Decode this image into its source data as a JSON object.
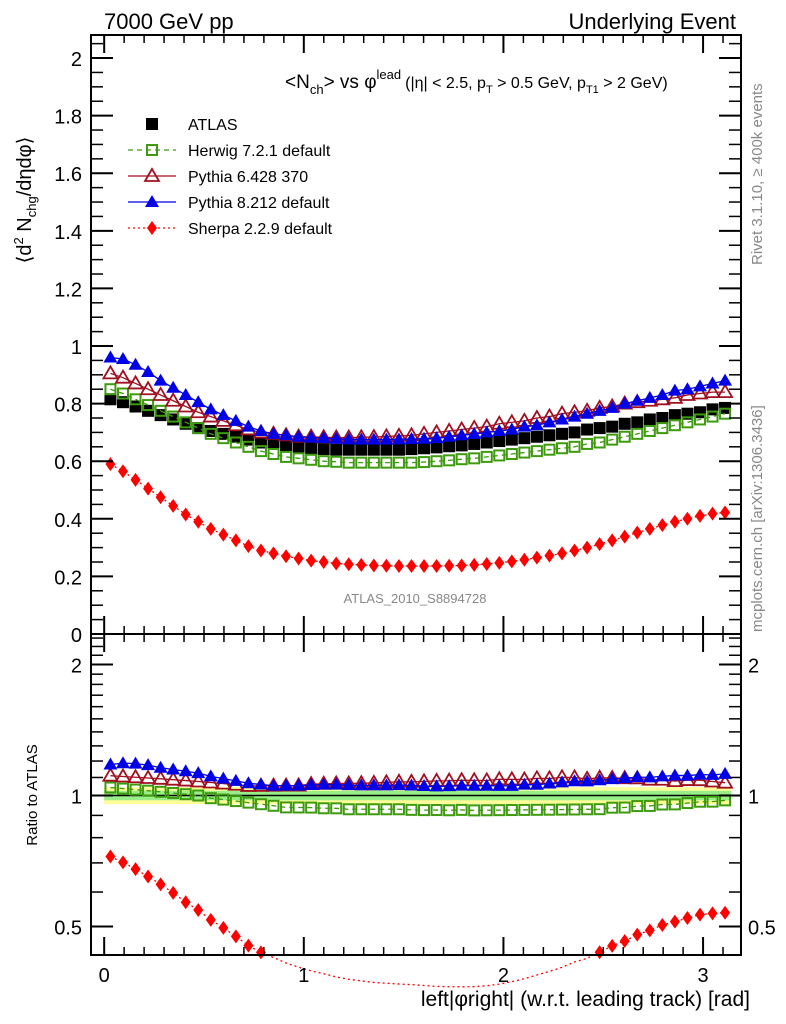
{
  "chart_data": {
    "type": "scatter",
    "header_left": "7000 GeV pp",
    "header_right": "Underlying Event",
    "title_main": "<N",
    "title_sub_ch": "ch",
    "title_vs": "> vs φ",
    "title_sup": "lead",
    "title_cuts": "(|η| < 2.5, p",
    "title_pt_sub": "T",
    "title_cuts2": " > 0.5 GeV, p",
    "title_pt1_sub": "T1",
    "title_cuts3": " > 2 GeV)",
    "ylabel": "⟨d² Nₑₕ₉/dηdφ⟩",
    "ylabel_parts": {
      "pre": "⟨d",
      "sup": "2",
      "mid": " N",
      "sub": "chg",
      "post": "/dηdφ⟩"
    },
    "xlabel": "left|φright| (w.r.t. leading track) [rad]",
    "ratio_ylabel": "Ratio to ATLAS",
    "analysis_id": "ATLAS_2010_S8894728",
    "side_text_top": "Rivet 3.1.10, ≥ 400k events",
    "side_text_bottom": "mcplots.cern.ch [arXiv:1306.3436]",
    "xlim": [
      -0.066,
      3.19
    ],
    "ylim": [
      0,
      2.08
    ],
    "ratio_ylim": [
      0.43,
      2.35
    ],
    "ratio_scale": "log",
    "x_ticks": [
      "0",
      "1",
      "2",
      "3"
    ],
    "y_ticks": [
      "0",
      "0.2",
      "0.4",
      "0.6",
      "0.8",
      "1",
      "1.2",
      "1.4",
      "1.6",
      "1.8",
      "2"
    ],
    "ratio_ticks": [
      "0.5",
      "1",
      "2"
    ],
    "legend_position": "top-left",
    "n_bins": 50,
    "x_min": 0,
    "x_max": 3.14159,
    "series": [
      {
        "name": "ATLAS",
        "color": "#000000",
        "marker": "square-filled",
        "line": "none",
        "values": [
          0.815,
          0.805,
          0.79,
          0.775,
          0.76,
          0.745,
          0.73,
          0.715,
          0.705,
          0.695,
          0.685,
          0.675,
          0.665,
          0.66,
          0.655,
          0.65,
          0.645,
          0.642,
          0.64,
          0.64,
          0.64,
          0.64,
          0.64,
          0.64,
          0.642,
          0.645,
          0.648,
          0.652,
          0.655,
          0.66,
          0.665,
          0.67,
          0.675,
          0.68,
          0.685,
          0.69,
          0.695,
          0.7,
          0.71,
          0.715,
          0.72,
          0.73,
          0.735,
          0.745,
          0.75,
          0.76,
          0.765,
          0.77,
          0.78,
          0.785
        ]
      },
      {
        "name": "Herwig 7.2.1 default",
        "color": "#3e9a0e",
        "marker": "square-open",
        "line": "dashed",
        "values": [
          0.85,
          0.835,
          0.815,
          0.795,
          0.775,
          0.755,
          0.735,
          0.715,
          0.695,
          0.68,
          0.665,
          0.65,
          0.635,
          0.625,
          0.615,
          0.61,
          0.605,
          0.6,
          0.598,
          0.595,
          0.595,
          0.595,
          0.595,
          0.595,
          0.595,
          0.597,
          0.6,
          0.603,
          0.607,
          0.61,
          0.615,
          0.62,
          0.625,
          0.63,
          0.635,
          0.64,
          0.645,
          0.65,
          0.66,
          0.665,
          0.675,
          0.685,
          0.695,
          0.705,
          0.715,
          0.725,
          0.735,
          0.745,
          0.755,
          0.765
        ]
      },
      {
        "name": "Pythia 6.428 370",
        "color": "#a01020",
        "marker": "triangle-open",
        "line": "solid",
        "values": [
          0.905,
          0.89,
          0.87,
          0.85,
          0.83,
          0.81,
          0.79,
          0.77,
          0.755,
          0.74,
          0.725,
          0.71,
          0.7,
          0.695,
          0.69,
          0.685,
          0.685,
          0.683,
          0.682,
          0.682,
          0.683,
          0.684,
          0.686,
          0.688,
          0.69,
          0.695,
          0.7,
          0.705,
          0.71,
          0.715,
          0.72,
          0.73,
          0.735,
          0.74,
          0.75,
          0.755,
          0.765,
          0.77,
          0.775,
          0.785,
          0.79,
          0.8,
          0.805,
          0.81,
          0.815,
          0.82,
          0.83,
          0.835,
          0.84,
          0.84
        ]
      },
      {
        "name": "Pythia 8.212 default",
        "color": "#0000e6",
        "marker": "triangle-filled",
        "line": "solid",
        "values": [
          0.96,
          0.955,
          0.935,
          0.91,
          0.88,
          0.855,
          0.83,
          0.805,
          0.78,
          0.76,
          0.74,
          0.72,
          0.705,
          0.695,
          0.69,
          0.685,
          0.682,
          0.68,
          0.678,
          0.676,
          0.675,
          0.675,
          0.675,
          0.676,
          0.677,
          0.678,
          0.68,
          0.685,
          0.69,
          0.695,
          0.7,
          0.705,
          0.71,
          0.72,
          0.725,
          0.735,
          0.745,
          0.755,
          0.765,
          0.775,
          0.785,
          0.8,
          0.81,
          0.82,
          0.83,
          0.845,
          0.85,
          0.86,
          0.87,
          0.88
        ]
      },
      {
        "name": "Sherpa 2.2.9 default",
        "color": "#ff0000",
        "marker": "diamond-filled",
        "line": "dotted",
        "values": [
          0.59,
          0.565,
          0.535,
          0.505,
          0.475,
          0.445,
          0.415,
          0.39,
          0.365,
          0.345,
          0.325,
          0.305,
          0.29,
          0.28,
          0.27,
          0.262,
          0.255,
          0.25,
          0.245,
          0.242,
          0.24,
          0.238,
          0.237,
          0.236,
          0.236,
          0.236,
          0.236,
          0.237,
          0.238,
          0.24,
          0.243,
          0.247,
          0.252,
          0.258,
          0.265,
          0.272,
          0.28,
          0.29,
          0.3,
          0.312,
          0.325,
          0.338,
          0.352,
          0.365,
          0.378,
          0.39,
          0.4,
          0.41,
          0.418,
          0.422
        ]
      }
    ],
    "ratio_bands": {
      "inner_color": "#99ee88",
      "outer_color": "#ffff99",
      "inner_halfwidth": 0.025,
      "outer_halfwidth": 0.045
    }
  }
}
